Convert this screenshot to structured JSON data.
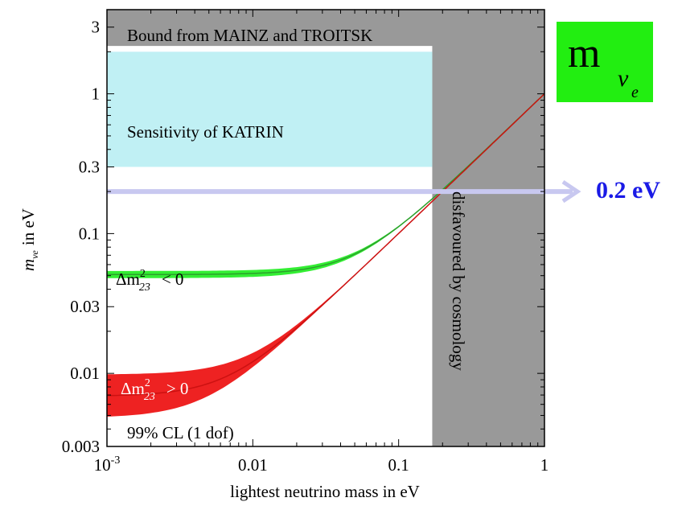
{
  "chart_data": {
    "type": "line",
    "title": "",
    "xlabel": "lightest neutrino mass in eV",
    "ylabel": "m_νe in eV",
    "ylabel_main": "m",
    "ylabel_sub": "νe",
    "ylabel_unit": "in eV",
    "xscale": "log",
    "yscale": "log",
    "xlim": [
      0.001,
      1
    ],
    "ylim": [
      0.003,
      4
    ],
    "x_ticks": [
      {
        "value": 0.001,
        "label": "10",
        "sup": "-3"
      },
      {
        "value": 0.01,
        "label": "0.01",
        "sup": ""
      },
      {
        "value": 0.1,
        "label": "0.1",
        "sup": ""
      },
      {
        "value": 1,
        "label": "1",
        "sup": ""
      }
    ],
    "y_ticks": [
      {
        "value": 0.003,
        "label": "0.003"
      },
      {
        "value": 0.01,
        "label": "0.01"
      },
      {
        "value": 0.03,
        "label": "0.03"
      },
      {
        "value": 0.1,
        "label": "0.1"
      },
      {
        "value": 0.3,
        "label": "0.3"
      },
      {
        "value": 1,
        "label": "1"
      },
      {
        "value": 3,
        "label": "3"
      }
    ],
    "regions": [
      {
        "name": "Bound from MAINZ and TROITSK",
        "y_min": 2.2,
        "x_min": 0.001,
        "x_max": 1,
        "color": "#999999"
      },
      {
        "name": "disfavoured by cosmology",
        "x_min": 0.17,
        "x_max": 1,
        "color": "#999999"
      },
      {
        "name": "Sensitivity of KATRIN",
        "x_min": 0.001,
        "x_max": 0.17,
        "y_min": 0.3,
        "y_max": 2.0,
        "color": "#c0f0f4"
      }
    ],
    "series": [
      {
        "name": "Δm²23 < 0",
        "label_main": "Δm",
        "label_sup": "2",
        "label_sub": "23",
        "label_rel": "< 0",
        "color": "#2ca02c",
        "band_color": "#33ee33",
        "m_low": 0.048,
        "m_high": 0.054
      },
      {
        "name": "Δm²23 > 0",
        "label_main": "Δm",
        "label_sup": "2",
        "label_sub": "23",
        "label_rel": "> 0",
        "color": "#cc1111",
        "band_color": "#ee2222",
        "m_low": 0.0048,
        "m_high": 0.0098
      }
    ],
    "annotations": {
      "cl_label": "99% CL (1 dof)",
      "reference_value": 0.2,
      "reference_label": "0.2 eV",
      "arrow_color": "#c8c8f0"
    },
    "badge": {
      "main": "m",
      "sub": "ν",
      "subsub": "e",
      "color": "#22ee11"
    }
  }
}
